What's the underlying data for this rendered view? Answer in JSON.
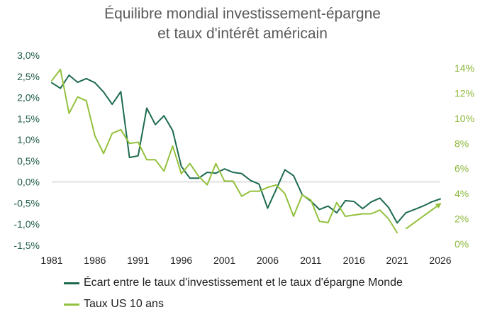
{
  "chart_data": {
    "type": "line",
    "title_lines": [
      "Équilibre mondial investissement-épargne",
      "et taux d'intérêt américain"
    ],
    "x_ticks": [
      "1981",
      "1986",
      "1991",
      "1996",
      "2001",
      "2006",
      "2011",
      "2016",
      "2021",
      "2026"
    ],
    "xlim": [
      1981,
      2026
    ],
    "y_left": {
      "ylim": [
        -0.015,
        0.03
      ],
      "ticks": [
        "3,0%",
        "2,5%",
        "2,0%",
        "1,5%",
        "1,0%",
        "0,5%",
        "0,0%",
        "-0,5%",
        "-1,0%",
        "-1,5%"
      ],
      "tick_values": [
        0.03,
        0.025,
        0.02,
        0.015,
        0.01,
        0.005,
        0.0,
        -0.005,
        -0.01,
        -0.015
      ]
    },
    "y_right": {
      "ylim": [
        0,
        0.14
      ],
      "ticks": [
        "14%",
        "12%",
        "10%",
        "8%",
        "6%",
        "4%",
        "2%",
        "0%"
      ],
      "tick_values": [
        0.14,
        0.12,
        0.1,
        0.08,
        0.06,
        0.04,
        0.02,
        0.0
      ]
    },
    "series": [
      {
        "name": "Écart entre le taux d'investissement et le taux d'épargne Monde",
        "axis": "left",
        "color": "#1e6b4d",
        "x": [
          1981,
          1982,
          1983,
          1984,
          1985,
          1986,
          1987,
          1988,
          1989,
          1990,
          1991,
          1992,
          1993,
          1994,
          1995,
          1996,
          1997,
          1998,
          1999,
          2000,
          2001,
          2002,
          2003,
          2004,
          2005,
          2006,
          2007,
          2008,
          2009,
          2010,
          2011,
          2012,
          2013,
          2014,
          2015,
          2016,
          2017,
          2018,
          2019,
          2020,
          2021,
          2022,
          2023,
          2024,
          2025,
          2026
        ],
        "values": [
          0.0235,
          0.0222,
          0.0253,
          0.0236,
          0.0245,
          0.0235,
          0.0213,
          0.0184,
          0.0214,
          0.0058,
          0.0062,
          0.0175,
          0.0136,
          0.0157,
          0.0122,
          0.0037,
          0.0009,
          0.0009,
          0.0023,
          0.0021,
          0.0031,
          0.0023,
          0.002,
          0.0004,
          -0.0005,
          -0.0062,
          -0.0017,
          0.0029,
          0.0015,
          -0.003,
          -0.0045,
          -0.0065,
          -0.0057,
          -0.0073,
          -0.0044,
          -0.0046,
          -0.0063,
          -0.0047,
          -0.0038,
          -0.006,
          -0.0097,
          -0.0073,
          -0.0065,
          -0.0057,
          -0.0047,
          -0.004
        ]
      },
      {
        "name": "Taux US 10 ans",
        "axis": "right",
        "color": "#93c13d",
        "x": [
          1981,
          1982,
          1983,
          1984,
          1985,
          1986,
          1987,
          1988,
          1989,
          1990,
          1991,
          1992,
          1993,
          1994,
          1995,
          1996,
          1997,
          1998,
          1999,
          2000,
          2001,
          2002,
          2003,
          2004,
          2005,
          2006,
          2007,
          2008,
          2009,
          2010,
          2011,
          2012,
          2013,
          2014,
          2015,
          2016,
          2017,
          2018,
          2019,
          2020,
          2021
        ],
        "values": [
          0.13,
          0.139,
          0.104,
          0.117,
          0.114,
          0.086,
          0.072,
          0.088,
          0.091,
          0.08,
          0.081,
          0.067,
          0.067,
          0.058,
          0.078,
          0.056,
          0.064,
          0.054,
          0.047,
          0.064,
          0.05,
          0.05,
          0.038,
          0.042,
          0.042,
          0.045,
          0.047,
          0.04,
          0.022,
          0.039,
          0.035,
          0.018,
          0.017,
          0.033,
          0.022,
          0.023,
          0.024,
          0.024,
          0.027,
          0.02,
          0.009
        ]
      }
    ],
    "projection": {
      "series": "Taux US 10 ans",
      "from": [
        2022,
        0.012
      ],
      "to": [
        2026,
        0.032
      ],
      "style": "arrow"
    },
    "grid": false,
    "legend_position": "bottom-left"
  }
}
